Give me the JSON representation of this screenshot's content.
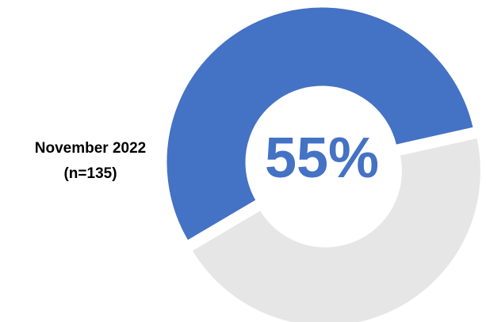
{
  "chart_data": {
    "type": "pie",
    "variant": "donut",
    "label_line1": "November 2022",
    "label_line2": "(n=135)",
    "center_text": "55%",
    "slices": [
      {
        "value": 55,
        "color": "#4472C4"
      },
      {
        "value": 45,
        "color": "#E6E6E6"
      }
    ],
    "exploded_slice": 1
  }
}
